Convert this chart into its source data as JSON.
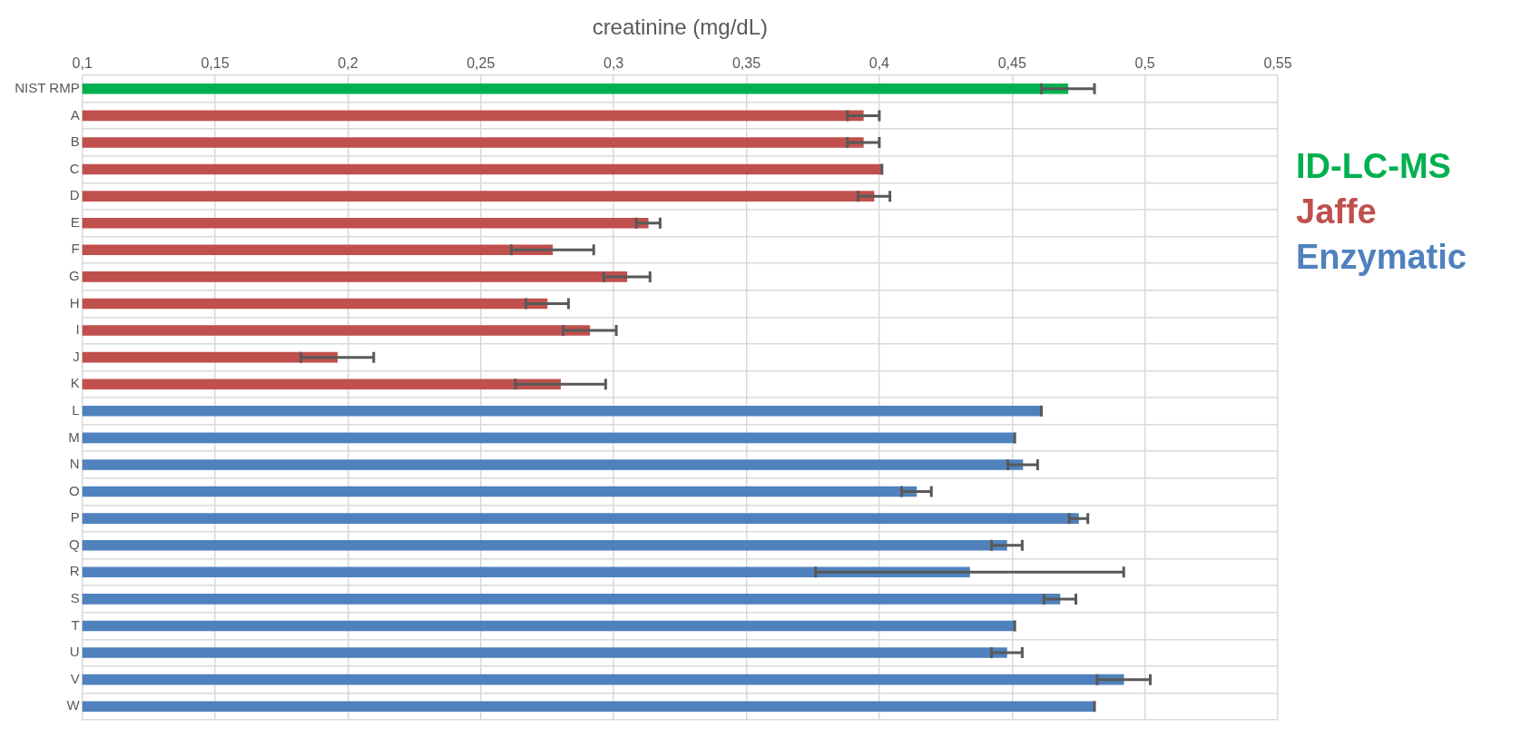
{
  "chart_data": {
    "type": "bar",
    "orientation": "horizontal",
    "xlabel": "creatinine (mg/dL)",
    "categories": [
      "NIST RMP",
      "A",
      "B",
      "C",
      "D",
      "E",
      "F",
      "G",
      "H",
      "I",
      "J",
      "K",
      "L",
      "M",
      "N",
      "O",
      "P",
      "Q",
      "R",
      "S",
      "T",
      "U",
      "V",
      "W"
    ],
    "series": [
      {
        "name": "ID-LC-MS",
        "color": "#00b050",
        "values": [
          0.471,
          null,
          null,
          null,
          null,
          null,
          null,
          null,
          null,
          null,
          null,
          null,
          null,
          null,
          null,
          null,
          null,
          null,
          null,
          null,
          null,
          null,
          null,
          null
        ],
        "errors": [
          0.01,
          null,
          null,
          null,
          null,
          null,
          null,
          null,
          null,
          null,
          null,
          null,
          null,
          null,
          null,
          null,
          null,
          null,
          null,
          null,
          null,
          null,
          null,
          null
        ]
      },
      {
        "name": "Jaffe",
        "color": "#c0504d",
        "values": [
          null,
          0.394,
          0.394,
          0.401,
          0.398,
          0.313,
          0.277,
          0.305,
          0.275,
          0.291,
          0.196,
          0.28,
          null,
          null,
          null,
          null,
          null,
          null,
          null,
          null,
          null,
          null,
          null,
          null
        ],
        "errors": [
          null,
          0.006,
          0.006,
          0,
          0.006,
          0.0045,
          0.0155,
          0.0087,
          0.008,
          0.01,
          0.0137,
          0.017,
          null,
          null,
          null,
          null,
          null,
          null,
          null,
          null,
          null,
          null,
          null,
          null
        ]
      },
      {
        "name": "Enzymatic",
        "color": "#4f81bd",
        "values": [
          null,
          null,
          null,
          null,
          null,
          null,
          null,
          null,
          null,
          null,
          null,
          null,
          0.461,
          0.451,
          0.454,
          0.414,
          0.475,
          0.448,
          0.434,
          0.468,
          0.451,
          0.448,
          0.492,
          0.481
        ],
        "errors": [
          null,
          null,
          null,
          null,
          null,
          null,
          null,
          null,
          null,
          null,
          null,
          null,
          0,
          0,
          0.0056,
          0.0056,
          0.0035,
          0.0058,
          0.058,
          0.006,
          0,
          0.0058,
          0.01,
          0
        ]
      }
    ],
    "xlim": [
      0.1,
      0.55
    ],
    "xticks": [
      {
        "value": 0.1,
        "label": "0,1"
      },
      {
        "value": 0.15,
        "label": "0,15"
      },
      {
        "value": 0.2,
        "label": "0,2"
      },
      {
        "value": 0.25,
        "label": "0,25"
      },
      {
        "value": 0.3,
        "label": "0,3"
      },
      {
        "value": 0.35,
        "label": "0,35"
      },
      {
        "value": 0.4,
        "label": "0,4"
      },
      {
        "value": 0.45,
        "label": "0,45"
      },
      {
        "value": 0.5,
        "label": "0,5"
      },
      {
        "value": 0.55,
        "label": "0,55"
      }
    ],
    "grid": true,
    "legend": "right"
  }
}
